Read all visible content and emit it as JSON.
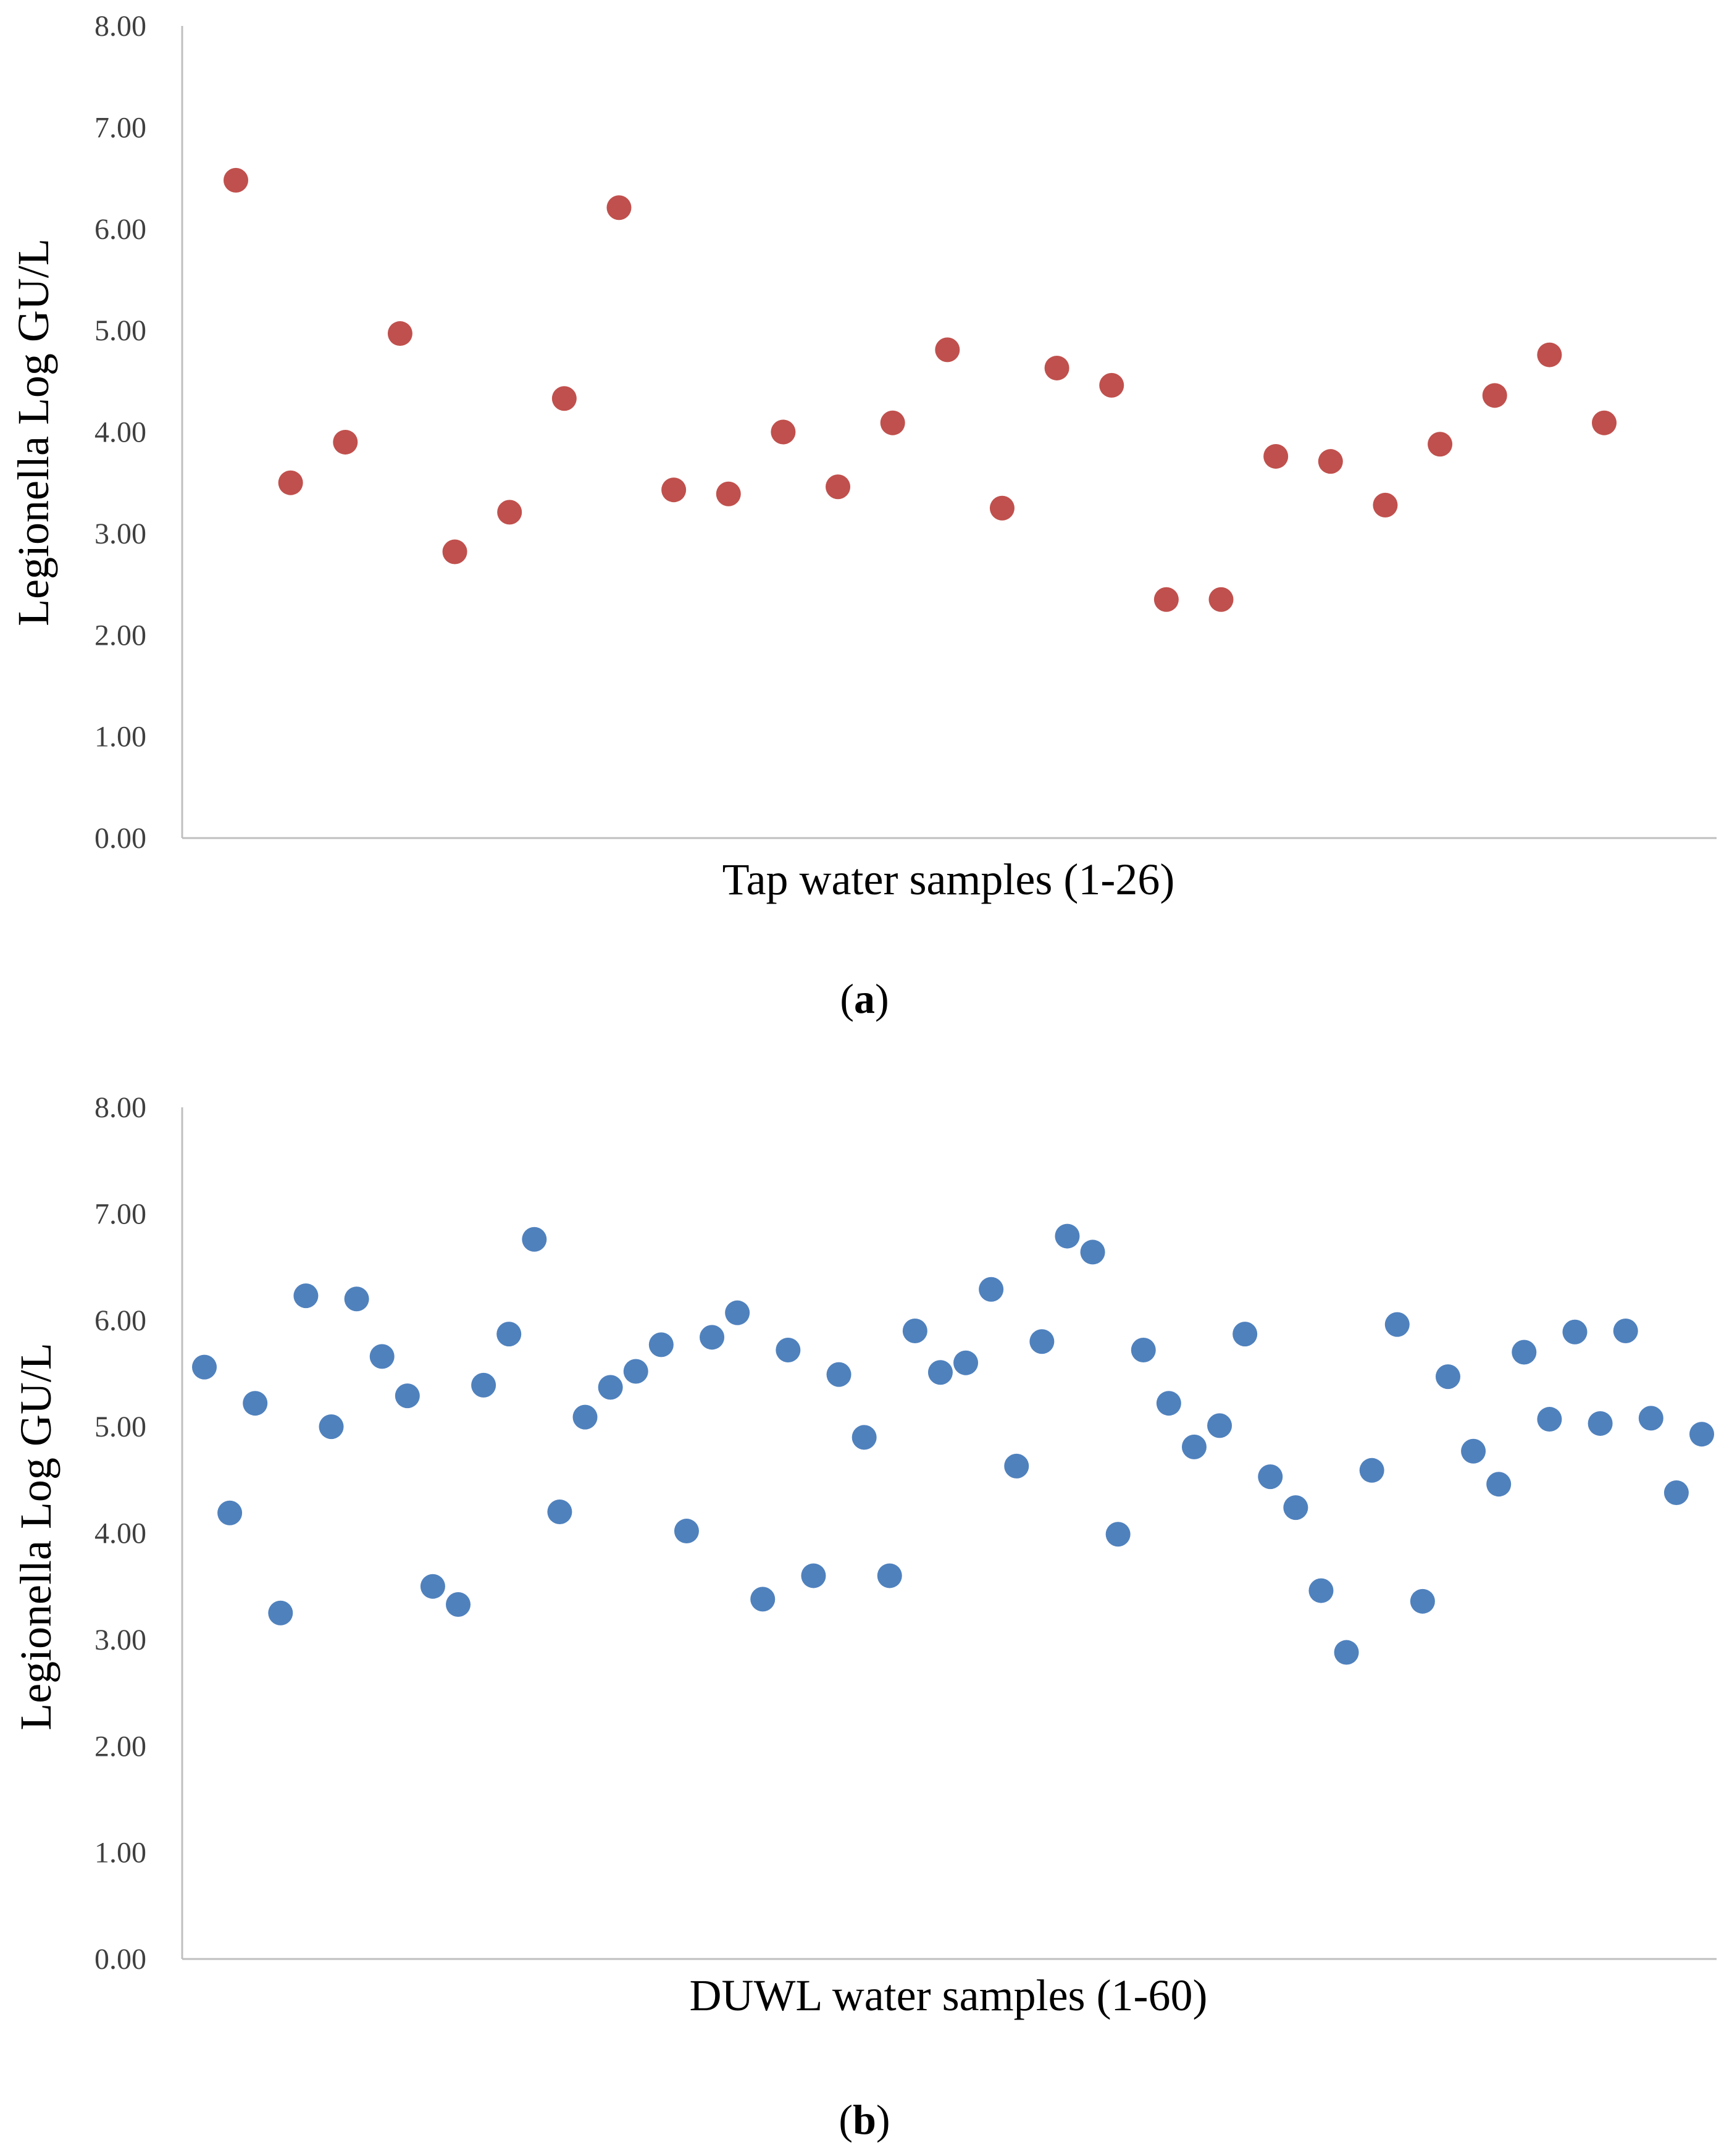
{
  "chart_data": [
    {
      "type": "scatter",
      "panel_label": "a",
      "color": "#c0504d",
      "xlabel": "Tap water samples (1-26)",
      "ylabel": "Legionella Log GU/L",
      "ylim": [
        0,
        8
      ],
      "y_ticks": [
        "0.00",
        "1.00",
        "2.00",
        "3.00",
        "4.00",
        "5.00",
        "6.00",
        "7.00",
        "8.00"
      ],
      "x": [
        1,
        2,
        3,
        4,
        5,
        6,
        7,
        8,
        9,
        10,
        11,
        12,
        13,
        14,
        15,
        16,
        17,
        18,
        19,
        20,
        21,
        22,
        23,
        24,
        25,
        26
      ],
      "values": [
        6.48,
        3.5,
        3.9,
        4.97,
        2.82,
        3.21,
        4.33,
        6.21,
        3.43,
        3.39,
        4.0,
        3.46,
        4.09,
        4.81,
        3.25,
        4.63,
        4.46,
        2.35,
        2.35,
        3.76,
        3.71,
        3.28,
        3.88,
        4.36,
        4.76,
        4.09
      ]
    },
    {
      "type": "scatter",
      "panel_label": "b",
      "color": "#4f81bd",
      "xlabel": "DUWL water samples (1-60)",
      "ylabel": "Legionella Log GU/L",
      "ylim": [
        0,
        8
      ],
      "y_ticks": [
        "0.00",
        "1.00",
        "2.00",
        "3.00",
        "4.00",
        "5.00",
        "6.00",
        "7.00",
        "8.00"
      ],
      "x": [
        1,
        2,
        3,
        4,
        5,
        6,
        7,
        8,
        9,
        10,
        11,
        12,
        13,
        14,
        15,
        16,
        17,
        18,
        19,
        20,
        21,
        22,
        23,
        24,
        25,
        26,
        27,
        28,
        29,
        30,
        31,
        32,
        33,
        34,
        35,
        36,
        37,
        38,
        39,
        40,
        41,
        42,
        43,
        44,
        45,
        46,
        47,
        48,
        49,
        50,
        51,
        52,
        53,
        54,
        55,
        56,
        57,
        58,
        59,
        60
      ],
      "values": [
        5.56,
        4.19,
        5.22,
        3.25,
        6.23,
        5.0,
        6.2,
        5.66,
        5.29,
        3.5,
        3.33,
        5.39,
        5.87,
        6.76,
        4.2,
        5.09,
        5.37,
        5.52,
        5.77,
        4.02,
        5.84,
        6.07,
        3.38,
        5.72,
        3.6,
        5.49,
        4.9,
        3.6,
        5.9,
        5.51,
        5.6,
        6.29,
        4.63,
        5.8,
        6.79,
        6.64,
        3.99,
        5.72,
        5.22,
        4.81,
        5.01,
        5.87,
        4.53,
        4.24,
        3.46,
        2.88,
        4.59,
        5.96,
        3.36,
        5.47,
        4.77,
        4.46,
        5.7,
        5.07,
        5.89,
        5.03,
        5.9,
        5.08,
        4.38,
        4.93
      ]
    }
  ]
}
